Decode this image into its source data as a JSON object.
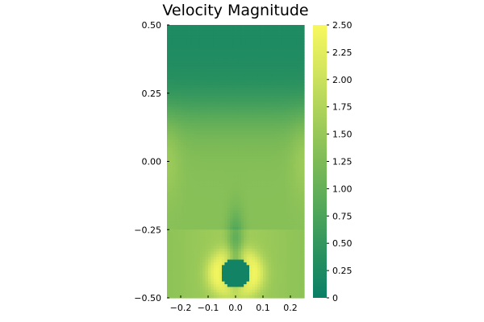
{
  "chart_data": {
    "type": "heatmap",
    "title": "Velocity Magnitude",
    "x_ticks": [
      -0.2,
      -0.1,
      0.0,
      0.1,
      0.2
    ],
    "x_tick_labels": [
      "−0.2",
      "−0.1",
      "0.0",
      "0.1",
      "0.2"
    ],
    "y_ticks": [
      0.5,
      0.25,
      0.0,
      -0.25,
      -0.5
    ],
    "y_tick_labels": [
      "0.50",
      "0.25",
      "0.00",
      "−0.25",
      "−0.50"
    ],
    "xlim": [
      -0.25,
      0.25
    ],
    "ylim": [
      -0.5,
      0.5
    ],
    "colorbar": {
      "range": [
        0,
        2.5
      ],
      "ticks": [
        0,
        0.25,
        0.5,
        0.75,
        1.0,
        1.25,
        1.5,
        1.75,
        2.0,
        2.25,
        2.5
      ],
      "tick_labels": [
        "0",
        "0.25",
        "0.50",
        "0.75",
        "1.00",
        "1.25",
        "1.50",
        "1.75",
        "2.00",
        "2.25",
        "2.50"
      ],
      "colormap": [
        "#0a7f67",
        "#2b925f",
        "#54a85a",
        "#7ebb57",
        "#a8d05a",
        "#d3e55e",
        "#f8f85f"
      ]
    },
    "obstacle": {
      "center": [
        0.0,
        -0.41
      ],
      "radius": 0.055
    },
    "field_description_values": {
      "top_region": 0.25,
      "mid_region": 1.35,
      "near_obstacle_sides": 2.1,
      "wake_min": 0.6
    },
    "grid": false
  }
}
